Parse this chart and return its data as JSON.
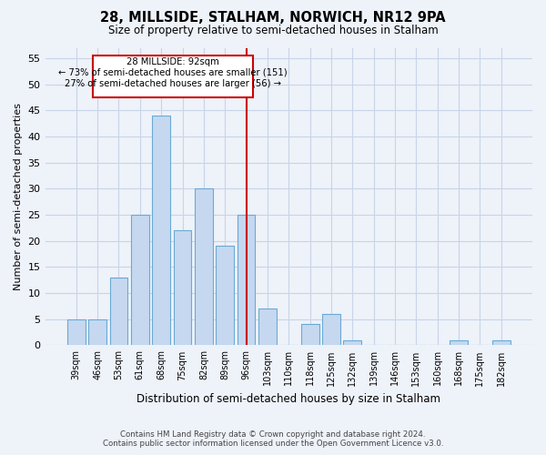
{
  "title": "28, MILLSIDE, STALHAM, NORWICH, NR12 9PA",
  "subtitle": "Size of property relative to semi-detached houses in Stalham",
  "xlabel": "Distribution of semi-detached houses by size in Stalham",
  "ylabel": "Number of semi-detached properties",
  "bin_labels": [
    "39sqm",
    "46sqm",
    "53sqm",
    "61sqm",
    "68sqm",
    "75sqm",
    "82sqm",
    "89sqm",
    "96sqm",
    "103sqm",
    "110sqm",
    "118sqm",
    "125sqm",
    "132sqm",
    "139sqm",
    "146sqm",
    "153sqm",
    "160sqm",
    "168sqm",
    "175sqm",
    "182sqm"
  ],
  "bin_counts": [
    5,
    5,
    13,
    25,
    44,
    22,
    30,
    19,
    25,
    7,
    0,
    4,
    6,
    1,
    0,
    0,
    0,
    0,
    1,
    0,
    1
  ],
  "bar_color": "#c5d8f0",
  "bar_edge_color": "#6aaad4",
  "subject_bin_index": 8,
  "subject_label": "28 MILLSIDE: 92sqm",
  "annotation_line1": "← 73% of semi-detached houses are smaller (151)",
  "annotation_line2": "27% of semi-detached houses are larger (56) →",
  "box_color": "#ffffff",
  "box_edge_color": "#cc0000",
  "vline_color": "#cc0000",
  "ylim": [
    0,
    57
  ],
  "yticks": [
    0,
    5,
    10,
    15,
    20,
    25,
    30,
    35,
    40,
    45,
    50,
    55
  ],
  "footer_line1": "Contains HM Land Registry data © Crown copyright and database right 2024.",
  "footer_line2": "Contains public sector information licensed under the Open Government Licence v3.0.",
  "bg_color": "#eef2f9",
  "grid_color": "#c8d4e8"
}
